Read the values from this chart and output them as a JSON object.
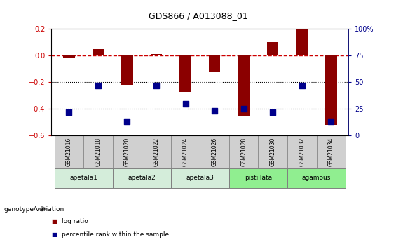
{
  "title": "GDS866 / A013088_01",
  "samples": [
    "GSM21016",
    "GSM21018",
    "GSM21020",
    "GSM21022",
    "GSM21024",
    "GSM21026",
    "GSM21028",
    "GSM21030",
    "GSM21032",
    "GSM21034"
  ],
  "log_ratio": [
    -0.02,
    0.05,
    -0.22,
    0.01,
    -0.27,
    -0.12,
    -0.45,
    0.1,
    0.2,
    -0.52
  ],
  "percentile_rank": [
    22,
    47,
    13,
    47,
    30,
    23,
    25,
    22,
    47,
    13
  ],
  "groups": [
    {
      "name": "apetala1",
      "samples": [
        0,
        1
      ],
      "color": "#d4edda"
    },
    {
      "name": "apetala2",
      "samples": [
        2,
        3
      ],
      "color": "#d4edda"
    },
    {
      "name": "apetala3",
      "samples": [
        4,
        5
      ],
      "color": "#d4edda"
    },
    {
      "name": "pistillata",
      "samples": [
        6,
        7
      ],
      "color": "#90ee90"
    },
    {
      "name": "agamous",
      "samples": [
        8,
        9
      ],
      "color": "#90ee90"
    }
  ],
  "ylim_left": [
    -0.6,
    0.2
  ],
  "ylim_right": [
    0,
    100
  ],
  "yticks_left": [
    -0.6,
    -0.4,
    -0.2,
    0.0,
    0.2
  ],
  "yticks_right": [
    0,
    25,
    50,
    75,
    100
  ],
  "bar_color": "#8B0000",
  "dot_color": "#00008B",
  "zero_line_color": "#cc0000",
  "dotted_line_color": "#000000",
  "sample_box_color": "#d0d0d0",
  "background_color": "#ffffff",
  "legend_items": [
    {
      "label": "log ratio",
      "color": "#8B0000"
    },
    {
      "label": "percentile rank within the sample",
      "color": "#00008B"
    }
  ]
}
